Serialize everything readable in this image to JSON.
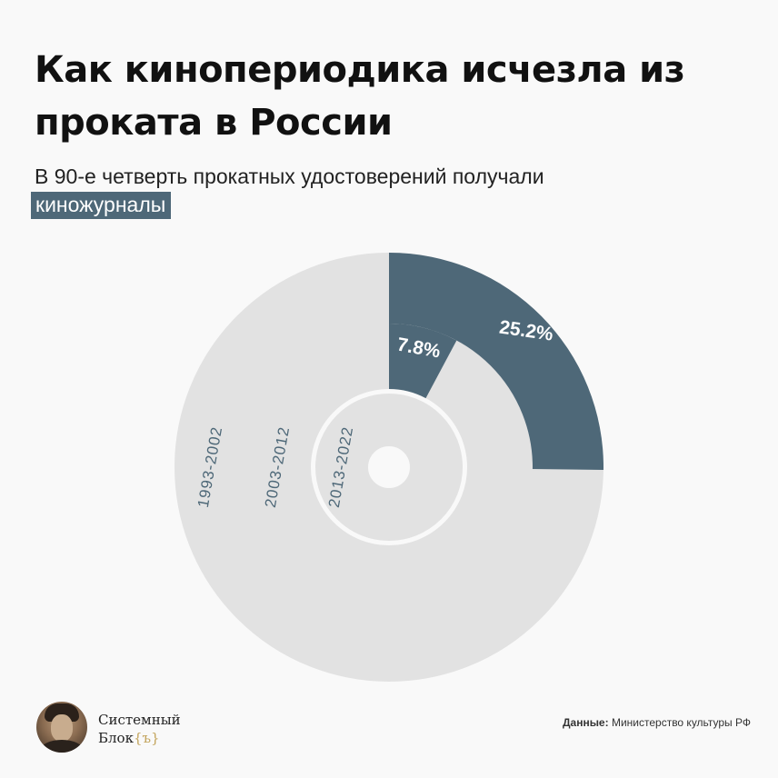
{
  "header": {
    "title": "Как кинопериодика исчезла из проката в России",
    "subtitle": "В 90-е четверть прокатных удостоверений получали",
    "highlight": "киножурналы"
  },
  "colors": {
    "accent": "#4e6878",
    "ring": "#e2e2e2",
    "ring_label": "#4e6878",
    "background": "#f9f9f9"
  },
  "chart_data": {
    "type": "radial-bar",
    "series": [
      {
        "period": "1993-2002",
        "value": 25.2,
        "label": "25.2%"
      },
      {
        "period": "2003-2012",
        "value": 7.8,
        "label": "7.8%"
      },
      {
        "period": "2013-2022",
        "value": 0,
        "label": ""
      }
    ],
    "unit": "%"
  },
  "footer": {
    "brand_line1": "Системный",
    "brand_line2": "Блок",
    "brand_brace": "{ъ}",
    "source_label": "Данные:",
    "source_value": "Министерство культуры РФ"
  }
}
